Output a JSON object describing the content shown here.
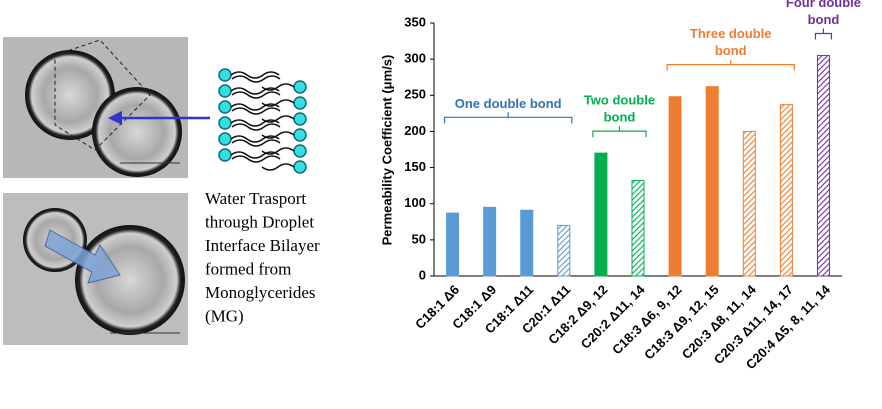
{
  "caption": [
    "Water Trasport",
    "through Droplet",
    "Interface Bilayer",
    "formed from",
    "Monoglycerides",
    "(MG)"
  ],
  "chart_data": {
    "type": "bar",
    "y_label": "Permeability Coefficient (μm/s)",
    "categories": [
      "C18:1 Δ6",
      "C18:1 Δ9",
      "C18:1 Δ11",
      "C20:1 Δ11",
      "C18:2 Δ9, 12",
      "C20:2 Δ11, 14",
      "C18:3 Δ6, 9, 12",
      "C18:3 Δ9, 12, 15",
      "C20:3 Δ8, 11, 14",
      "C20:3 Δ11, 14, 17",
      "C20:4 Δ5, 8, 11, 14"
    ],
    "values": [
      87,
      95,
      91,
      70,
      170,
      132,
      248,
      262,
      200,
      237,
      305
    ],
    "colors": [
      "#5b9bd5",
      "#5b9bd5",
      "#5b9bd5",
      "#5b9bd5",
      "#00b050",
      "#00b050",
      "#ed7d31",
      "#ed7d31",
      "#ed7d31",
      "#ed7d31",
      "#7030a0"
    ],
    "hatched": [
      false,
      false,
      false,
      true,
      false,
      true,
      false,
      false,
      true,
      true,
      true
    ],
    "ylim": [
      0,
      350
    ],
    "yticks": [
      0,
      50,
      100,
      150,
      200,
      250,
      300,
      350
    ],
    "grid": false,
    "annotations": [
      {
        "text": [
          "One double bond"
        ],
        "color": "#2e75b6"
      },
      {
        "text": [
          "Two double",
          "bond"
        ],
        "color": "#00b050"
      },
      {
        "text": [
          "Three double",
          "bond"
        ],
        "color": "#ed7d31"
      },
      {
        "text": [
          "Four double",
          "bond"
        ],
        "color": "#7030a0"
      }
    ]
  }
}
